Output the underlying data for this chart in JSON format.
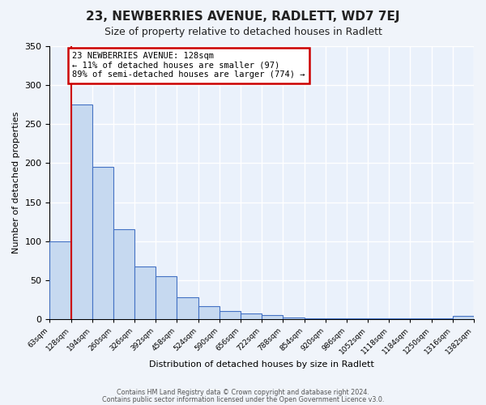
{
  "title": "23, NEWBERRIES AVENUE, RADLETT, WD7 7EJ",
  "subtitle": "Size of property relative to detached houses in Radlett",
  "xlabel": "Distribution of detached houses by size in Radlett",
  "ylabel": "Number of detached properties",
  "bar_values": [
    100,
    275,
    195,
    115,
    68,
    55,
    28,
    17,
    11,
    8,
    5,
    2,
    1,
    1,
    1,
    1,
    1,
    1,
    1,
    4
  ],
  "bin_labels": [
    "63sqm",
    "128sqm",
    "194sqm",
    "260sqm",
    "326sqm",
    "392sqm",
    "458sqm",
    "524sqm",
    "590sqm",
    "656sqm",
    "722sqm",
    "788sqm",
    "854sqm",
    "920sqm",
    "986sqm",
    "1052sqm",
    "1118sqm",
    "1184sqm",
    "1250sqm",
    "1316sqm",
    "1382sqm"
  ],
  "bar_color": "#c6d9f0",
  "bar_edge_color": "#4472c4",
  "annotation_text": "23 NEWBERRIES AVENUE: 128sqm\n← 11% of detached houses are smaller (97)\n89% of semi-detached houses are larger (774) →",
  "annotation_box_color": "#ffffff",
  "annotation_box_edge": "#cc0000",
  "ylim": [
    0,
    350
  ],
  "yticks": [
    0,
    50,
    100,
    150,
    200,
    250,
    300,
    350
  ],
  "footer1": "Contains HM Land Registry data © Crown copyright and database right 2024.",
  "footer2": "Contains public sector information licensed under the Open Government Licence v3.0.",
  "background_color": "#f0f4fa",
  "plot_bg_color": "#eaf1fb"
}
